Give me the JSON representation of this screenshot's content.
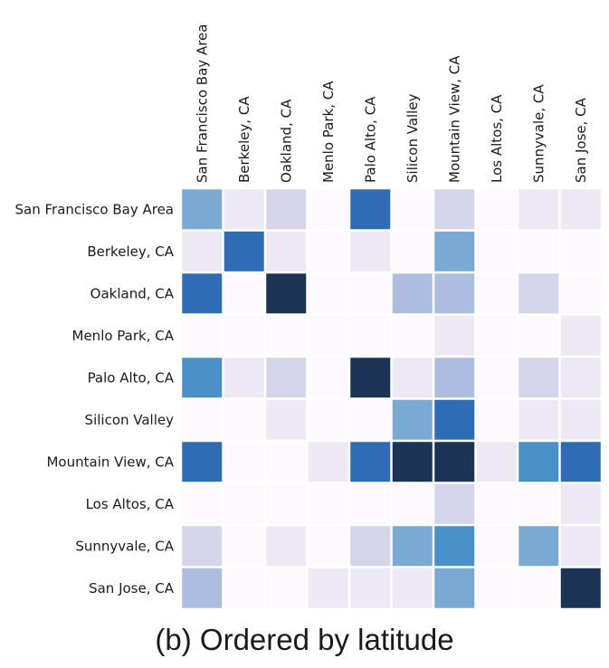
{
  "caption": "(b)  Ordered by latitude",
  "chart_data": {
    "type": "heatmap",
    "title": "",
    "xlabel": "",
    "ylabel": "",
    "rows": [
      "San Francisco Bay Area",
      "Berkeley, CA",
      "Oakland, CA",
      "Menlo Park, CA",
      "Palo Alto, CA",
      "Silicon Valley",
      "Mountain View, CA",
      "Los Altos, CA",
      "Sunnyvale, CA",
      "San Jose, CA"
    ],
    "columns": [
      "San Francisco Bay Area",
      "Berkeley, CA",
      "Oakland, CA",
      "Menlo Park, CA",
      "Palo Alto, CA",
      "Silicon Valley",
      "Mountain View, CA",
      "Los Altos, CA",
      "Sunnyvale, CA",
      "San Jose, CA"
    ],
    "values": [
      [
        0.55,
        0.1,
        0.3,
        0.02,
        0.8,
        0.02,
        0.3,
        0.02,
        0.18,
        0.18
      ],
      [
        0.1,
        0.8,
        0.1,
        0.02,
        0.18,
        0.02,
        0.55,
        0.02,
        0.02,
        0.02
      ],
      [
        0.8,
        0.02,
        0.95,
        0.02,
        0.02,
        0.42,
        0.42,
        0.02,
        0.3,
        0.02
      ],
      [
        0.02,
        0.02,
        0.02,
        0.02,
        0.02,
        0.02,
        0.1,
        0.02,
        0.02,
        0.1
      ],
      [
        0.65,
        0.1,
        0.3,
        0.02,
        0.95,
        0.18,
        0.42,
        0.02,
        0.3,
        0.18
      ],
      [
        0.02,
        0.02,
        0.1,
        0.02,
        0.02,
        0.55,
        0.8,
        0.02,
        0.1,
        0.1
      ],
      [
        0.8,
        0.02,
        0.02,
        0.18,
        0.8,
        0.95,
        0.95,
        0.18,
        0.65,
        0.8
      ],
      [
        0.02,
        0.02,
        0.02,
        0.02,
        0.02,
        0.02,
        0.3,
        0.02,
        0.02,
        0.1
      ],
      [
        0.3,
        0.02,
        0.1,
        0.02,
        0.3,
        0.55,
        0.65,
        0.02,
        0.55,
        0.18
      ],
      [
        0.42,
        0.02,
        0.02,
        0.1,
        0.18,
        0.1,
        0.55,
        0.02,
        0.02,
        0.95
      ]
    ],
    "colormap": [
      "#fdf9fc",
      "#ece8f4",
      "#d4d4ea",
      "#adbde0",
      "#7aaad4",
      "#4a90c8",
      "#2e6db5",
      "#22559a",
      "#1b3455"
    ],
    "value_range": [
      0,
      1
    ],
    "grid": false,
    "legend": "none"
  }
}
